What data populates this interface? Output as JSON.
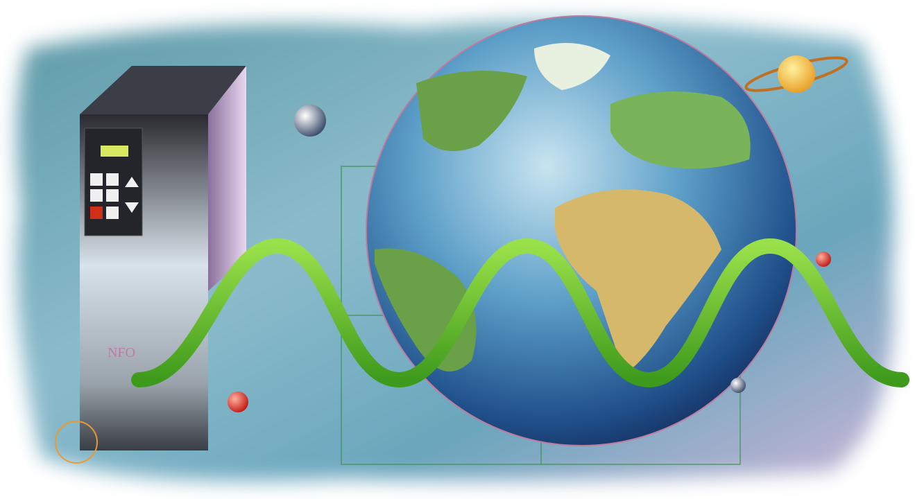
{
  "drive_label": "NFO"
}
